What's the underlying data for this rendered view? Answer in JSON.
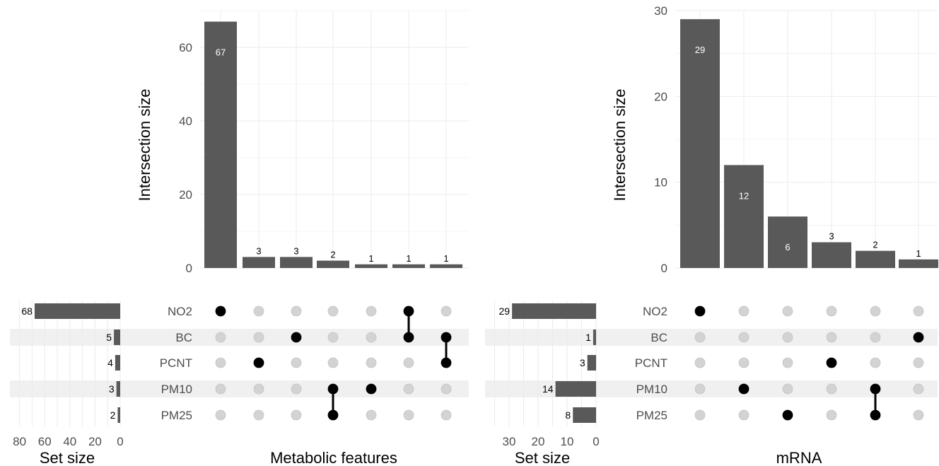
{
  "chart_data": [
    {
      "type": "bar",
      "panel": "upset-left",
      "title": "",
      "xlabel": "Metabolic features",
      "ylabel": "Intersection size",
      "ylim": [
        0,
        70
      ],
      "yticks": [
        0,
        20,
        40,
        60
      ],
      "sets": [
        "NO2",
        "BC",
        "PCNT",
        "PM10",
        "PM25"
      ],
      "intersections": [
        {
          "members": [
            "NO2"
          ],
          "value": 67
        },
        {
          "members": [
            "PCNT"
          ],
          "value": 3
        },
        {
          "members": [
            "BC"
          ],
          "value": 3
        },
        {
          "members": [
            "PM10",
            "PM25"
          ],
          "value": 2
        },
        {
          "members": [
            "PM10"
          ],
          "value": 1
        },
        {
          "members": [
            "NO2",
            "BC"
          ],
          "value": 1
        },
        {
          "members": [
            "BC",
            "PCNT"
          ],
          "value": 1
        }
      ],
      "set_sizes": {
        "xlabel": "Set size",
        "values": [
          68,
          5,
          4,
          3,
          2
        ],
        "xlim": [
          0,
          90
        ],
        "ticks": [
          80,
          60,
          40,
          20,
          0
        ]
      },
      "grid": true
    },
    {
      "type": "bar",
      "panel": "upset-right",
      "title": "",
      "xlabel": "mRNA",
      "ylabel": "Intersection size",
      "ylim": [
        0,
        30
      ],
      "yticks": [
        0,
        10,
        20,
        30
      ],
      "sets": [
        "NO2",
        "BC",
        "PCNT",
        "PM10",
        "PM25"
      ],
      "intersections": [
        {
          "members": [
            "NO2"
          ],
          "value": 29
        },
        {
          "members": [
            "PM10"
          ],
          "value": 12
        },
        {
          "members": [
            "PM25"
          ],
          "value": 6
        },
        {
          "members": [
            "PCNT"
          ],
          "value": 3
        },
        {
          "members": [
            "PM10",
            "PM25"
          ],
          "value": 2
        },
        {
          "members": [
            "BC"
          ],
          "value": 1
        }
      ],
      "set_sizes": {
        "xlabel": "Set size",
        "values": [
          29,
          1,
          3,
          14,
          8
        ],
        "xlim": [
          0,
          37
        ],
        "ticks": [
          30,
          20,
          10,
          0
        ]
      },
      "grid": true
    }
  ],
  "colors": {
    "bar": "#595959",
    "dot_on": "#000000",
    "dot_off": "#d3d3d3",
    "grid": "#ebebeb",
    "stripe": "#f0f0f0",
    "axis_text": "#4d4d4d",
    "title_text": "#000000",
    "bar_label_inside": "#ffffff",
    "bar_label_above": "#000000"
  }
}
